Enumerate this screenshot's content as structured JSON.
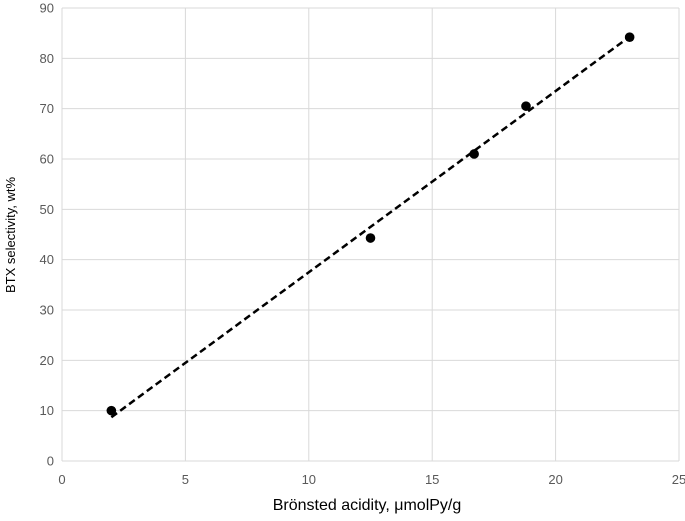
{
  "chart_data": {
    "type": "scatter",
    "title": "",
    "xlabel": "Brönsted acidity, μmolPy/g",
    "ylabel": "BTX selectivity, wt%",
    "xlim": [
      0,
      25
    ],
    "ylim": [
      0,
      90
    ],
    "x_ticks": [
      "0",
      "5",
      "10",
      "15",
      "20",
      "25"
    ],
    "y_ticks": [
      "0",
      "10",
      "20",
      "30",
      "40",
      "50",
      "60",
      "70",
      "80",
      "90"
    ],
    "grid": true,
    "legend": "none",
    "series": [
      {
        "points": [
          {
            "x": 2.0,
            "y": 10.0
          },
          {
            "x": 12.5,
            "y": 44.3
          },
          {
            "x": 16.7,
            "y": 61.0
          },
          {
            "x": 18.8,
            "y": 70.5
          },
          {
            "x": 23.0,
            "y": 84.2
          }
        ],
        "color": "#000000",
        "marker": "circle"
      }
    ],
    "trendline": {
      "style": "dashed",
      "color": "#000000",
      "x_range": [
        2.0,
        23.0
      ],
      "y_range": [
        8.7,
        84.3
      ]
    }
  },
  "colors": {
    "grid": "#d9d9d9",
    "tick_label": "#595959",
    "marker": "#000000",
    "trendline": "#000000"
  }
}
